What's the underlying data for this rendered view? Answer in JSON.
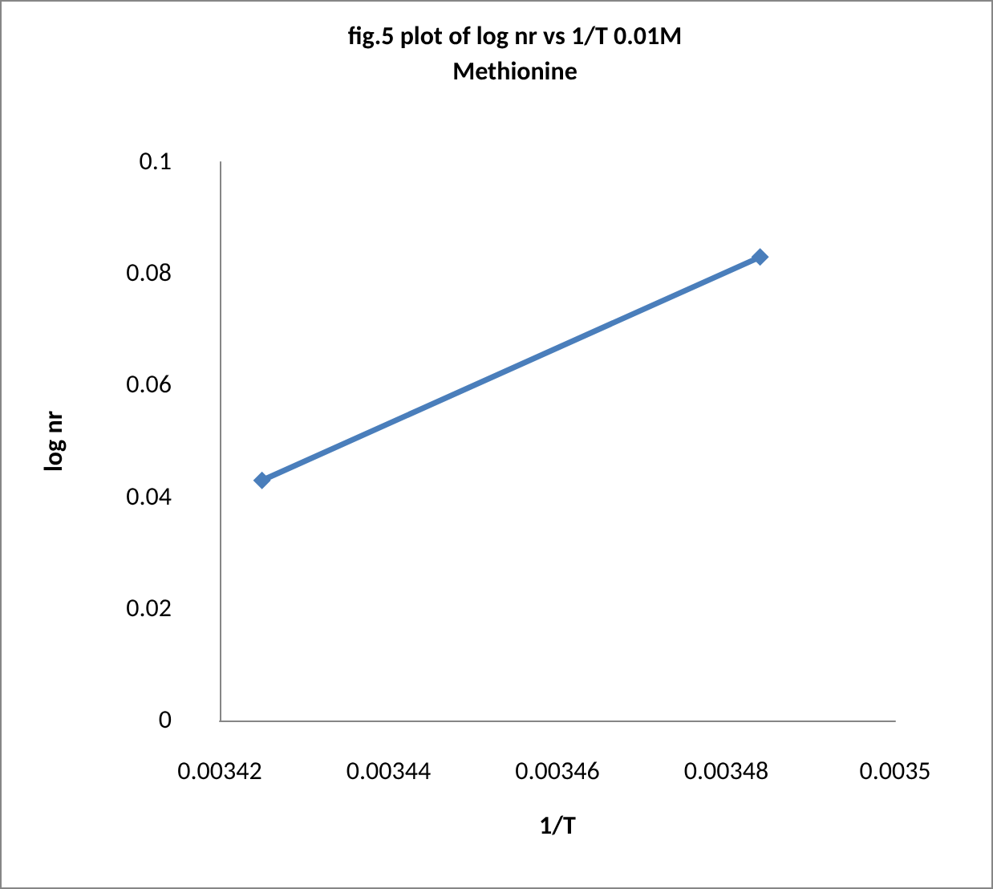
{
  "chart_data": {
    "type": "line",
    "title": "fig.5 plot of log nr vs 1/T 0.01M\nMethionine",
    "xlabel": "1/T",
    "ylabel": "log nr",
    "x": [
      0.003425,
      0.003484
    ],
    "series": [
      {
        "color": "#4a7ebb",
        "values": [
          0.043,
          0.083
        ]
      }
    ],
    "xlim": [
      0.00342,
      0.0035
    ],
    "xticks": [
      0.00342,
      0.00344,
      0.00346,
      0.00348,
      0.0035
    ],
    "ylim": [
      0,
      0.1
    ],
    "yticks": [
      0,
      0.02,
      0.04,
      0.06,
      0.08,
      0.1
    ],
    "grid": false,
    "marker": "diamond",
    "line_style": "solid"
  }
}
